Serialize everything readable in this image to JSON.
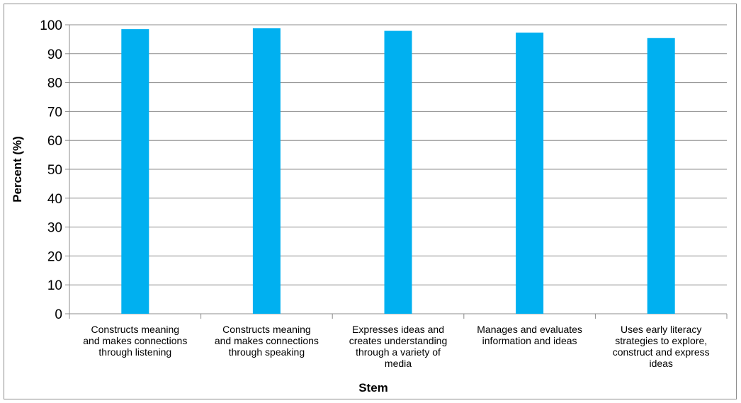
{
  "chart_data": {
    "type": "bar",
    "title": "",
    "xlabel": "Stem",
    "ylabel": "Percent (%)",
    "ylim": [
      0,
      100
    ],
    "yticks": [
      0,
      10,
      20,
      30,
      40,
      50,
      60,
      70,
      80,
      90,
      100
    ],
    "grid": true,
    "legend": "none",
    "bar_color": "#00b0f0",
    "categories": [
      [
        "Constructs meaning",
        "and makes connections",
        "through listening"
      ],
      [
        "Constructs meaning",
        "and makes connections",
        "through speaking"
      ],
      [
        "Expresses ideas and",
        "creates understanding",
        "through a variety of",
        "media"
      ],
      [
        "Manages and evaluates",
        "information and ideas"
      ],
      [
        "Uses early literacy",
        "strategies to explore,",
        "construct and express",
        "ideas"
      ]
    ],
    "values": [
      98.5,
      98.8,
      97.9,
      97.3,
      95.4
    ]
  }
}
